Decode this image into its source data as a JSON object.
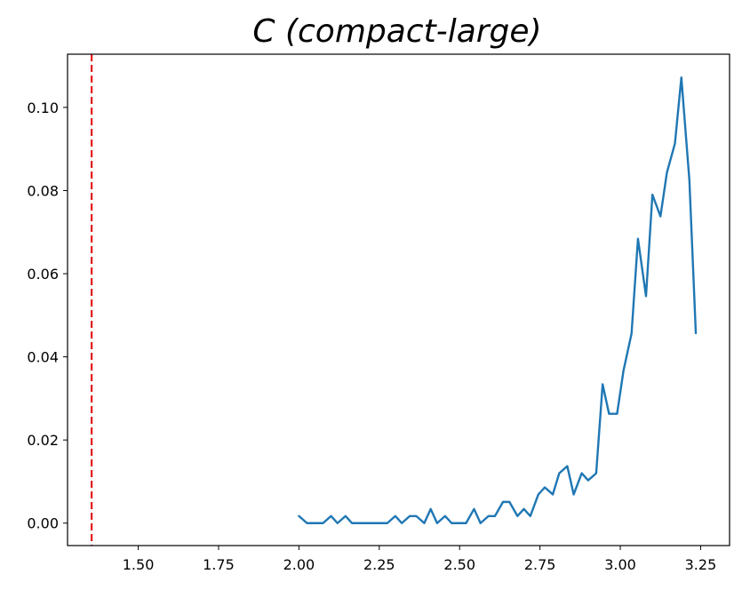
{
  "chart_data": {
    "type": "line",
    "title": "C (compact-large)",
    "xlabel": "",
    "ylabel": "",
    "xlim": [
      1.28,
      3.34
    ],
    "ylim": [
      -0.0054,
      0.1128
    ],
    "x_ticks": [
      1.5,
      1.75,
      2.0,
      2.25,
      2.5,
      2.75,
      3.0,
      3.25
    ],
    "x_tick_labels": [
      "1.50",
      "1.75",
      "2.00",
      "2.25",
      "2.50",
      "2.75",
      "3.00",
      "3.25"
    ],
    "y_ticks": [
      0.0,
      0.02,
      0.04,
      0.06,
      0.08,
      0.1
    ],
    "y_tick_labels": [
      "0.00",
      "0.02",
      "0.04",
      "0.06",
      "0.08",
      "0.10"
    ],
    "grid": false,
    "series": [
      {
        "color": "#1f77b4",
        "x": [
          2.0,
          2.025,
          2.05,
          2.075,
          2.1,
          2.12,
          2.145,
          2.165,
          2.19,
          2.21,
          2.235,
          2.255,
          2.275,
          2.3,
          2.32,
          2.345,
          2.365,
          2.39,
          2.41,
          2.43,
          2.455,
          2.475,
          2.5,
          2.52,
          2.545,
          2.565,
          2.59,
          2.61,
          2.635,
          2.655,
          2.68,
          2.7,
          2.72,
          2.745,
          2.765,
          2.79,
          2.81,
          2.835,
          2.855,
          2.88,
          2.9,
          2.925,
          2.945,
          2.965,
          2.99,
          3.01,
          3.035,
          3.055,
          3.08,
          3.1,
          3.125,
          3.145,
          3.17,
          3.19,
          3.215,
          3.235
        ],
        "y": [
          0.0017,
          0.0,
          0.0,
          0.0,
          0.0017,
          0.0,
          0.0017,
          0.0,
          0.0,
          0.0,
          0.0,
          0.0,
          0.0,
          0.0017,
          0.0,
          0.0017,
          0.0017,
          0.0,
          0.0034,
          0.0,
          0.0017,
          0.0,
          0.0,
          0.0,
          0.0034,
          0.0,
          0.0017,
          0.0017,
          0.0051,
          0.0051,
          0.0017,
          0.0034,
          0.0017,
          0.0069,
          0.0086,
          0.0069,
          0.012,
          0.0137,
          0.0069,
          0.012,
          0.0103,
          0.012,
          0.0334,
          0.0263,
          0.0263,
          0.0367,
          0.0456,
          0.0684,
          0.0546,
          0.079,
          0.0738,
          0.0843,
          0.0913,
          0.1072,
          0.0825,
          0.0457
        ]
      }
    ],
    "reference_lines": [
      {
        "orientation": "vertical",
        "x": 1.355,
        "color": "#e31a1c",
        "style": "dashed"
      }
    ]
  }
}
